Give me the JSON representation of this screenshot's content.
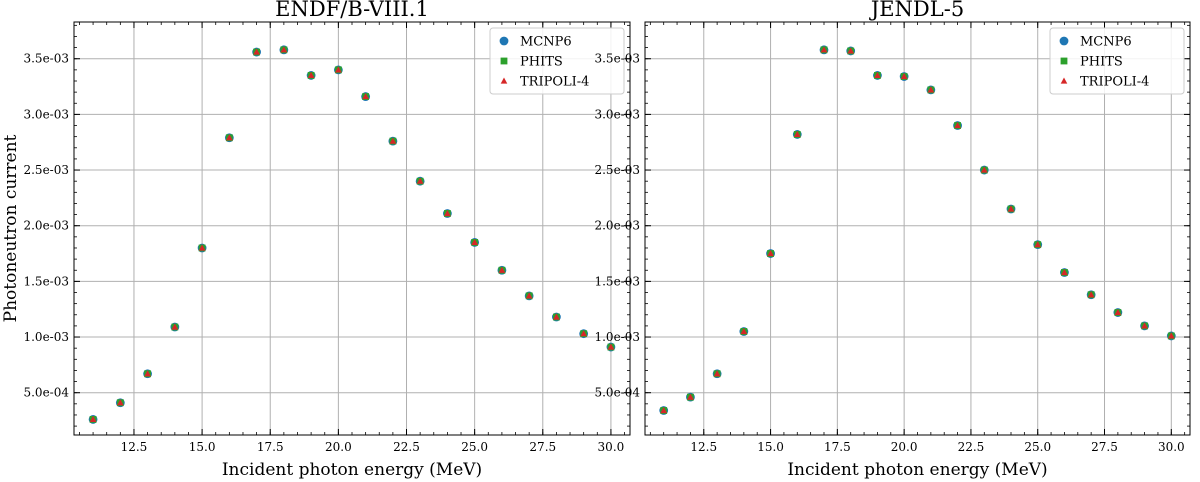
{
  "chart_data": [
    {
      "type": "scatter",
      "title": "ENDF/B-VIII.1",
      "xlabel": "Incident photon energy (MeV)",
      "ylabel": "Photoneutron current",
      "xlim": [
        10.3,
        30.7
      ],
      "ylim": [
        0.00012,
        0.00383
      ],
      "xticks": [
        12.5,
        15.0,
        17.5,
        20.0,
        22.5,
        25.0,
        27.5,
        30.0
      ],
      "xtick_labels": [
        "12.5",
        "15.0",
        "17.5",
        "20.0",
        "22.5",
        "25.0",
        "27.5",
        "30.0"
      ],
      "yticks": [
        0.0005,
        0.001,
        0.0015,
        0.002,
        0.0025,
        0.003,
        0.0035
      ],
      "ytick_labels": [
        "5.0e-04",
        "1.0e-03",
        "1.5e-03",
        "2.0e-03",
        "2.5e-03",
        "3.0e-03",
        "3.5e-03"
      ],
      "grid": true,
      "legend_position": "top-right",
      "x": [
        11,
        12,
        13,
        14,
        15,
        16,
        17,
        18,
        19,
        20,
        21,
        22,
        23,
        24,
        25,
        26,
        27,
        28,
        29,
        30
      ],
      "series": [
        {
          "name": "MCNP6",
          "marker": "circle",
          "color": "#1f77b4",
          "values": [
            0.00026,
            0.00041,
            0.00067,
            0.00109,
            0.0018,
            0.00279,
            0.00356,
            0.00358,
            0.00335,
            0.0034,
            0.00316,
            0.00276,
            0.0024,
            0.00211,
            0.00185,
            0.0016,
            0.00137,
            0.00118,
            0.00103,
            0.00091
          ]
        },
        {
          "name": "PHITS",
          "marker": "square",
          "color": "#2ca02c",
          "values": [
            0.00026,
            0.00041,
            0.00067,
            0.00109,
            0.0018,
            0.00279,
            0.00356,
            0.00358,
            0.00335,
            0.0034,
            0.00316,
            0.00276,
            0.0024,
            0.00211,
            0.00185,
            0.0016,
            0.00137,
            0.00118,
            0.00103,
            0.00091
          ]
        },
        {
          "name": "TRIPOLI-4",
          "marker": "triangle",
          "color": "#d62728",
          "values": [
            0.00026,
            0.00041,
            0.00067,
            0.00109,
            0.0018,
            0.00279,
            0.00356,
            0.00358,
            0.00335,
            0.0034,
            0.00316,
            0.00276,
            0.0024,
            0.00211,
            0.00185,
            0.0016,
            0.00137,
            0.00118,
            0.00103,
            0.00091
          ]
        }
      ]
    },
    {
      "type": "scatter",
      "title": "JENDL-5",
      "xlabel": "Incident photon energy (MeV)",
      "ylabel": "",
      "xlim": [
        10.3,
        30.7
      ],
      "ylim": [
        0.00012,
        0.00383
      ],
      "xticks": [
        12.5,
        15.0,
        17.5,
        20.0,
        22.5,
        25.0,
        27.5,
        30.0
      ],
      "xtick_labels": [
        "12.5",
        "15.0",
        "17.5",
        "20.0",
        "22.5",
        "25.0",
        "27.5",
        "30.0"
      ],
      "yticks": [
        0.0005,
        0.001,
        0.0015,
        0.002,
        0.0025,
        0.003,
        0.0035
      ],
      "ytick_labels": [
        "5.0e-04",
        "1.0e-03",
        "1.5e-03",
        "2.0e-03",
        "2.5e-03",
        "3.0e-03",
        "3.5e-03"
      ],
      "grid": true,
      "legend_position": "top-right",
      "x": [
        11,
        12,
        13,
        14,
        15,
        16,
        17,
        18,
        19,
        20,
        21,
        22,
        23,
        24,
        25,
        26,
        27,
        28,
        29,
        30
      ],
      "series": [
        {
          "name": "MCNP6",
          "marker": "circle",
          "color": "#1f77b4",
          "values": [
            0.00034,
            0.00046,
            0.00067,
            0.00105,
            0.00175,
            0.00282,
            0.00358,
            0.00357,
            0.00335,
            0.00334,
            0.00322,
            0.0029,
            0.0025,
            0.00215,
            0.00183,
            0.00158,
            0.00138,
            0.00122,
            0.0011,
            0.00101
          ]
        },
        {
          "name": "PHITS",
          "marker": "square",
          "color": "#2ca02c",
          "values": [
            0.00034,
            0.00046,
            0.00067,
            0.00105,
            0.00175,
            0.00282,
            0.00358,
            0.00357,
            0.00335,
            0.00334,
            0.00322,
            0.0029,
            0.0025,
            0.00215,
            0.00183,
            0.00158,
            0.00138,
            0.00122,
            0.0011,
            0.00101
          ]
        },
        {
          "name": "TRIPOLI-4",
          "marker": "triangle",
          "color": "#d62728",
          "values": [
            0.00034,
            0.00046,
            0.00067,
            0.00105,
            0.00175,
            0.00282,
            0.00358,
            0.00357,
            0.00335,
            0.00334,
            0.00322,
            0.0029,
            0.0025,
            0.00215,
            0.00183,
            0.00158,
            0.00138,
            0.00122,
            0.0011,
            0.00101
          ]
        }
      ]
    }
  ]
}
